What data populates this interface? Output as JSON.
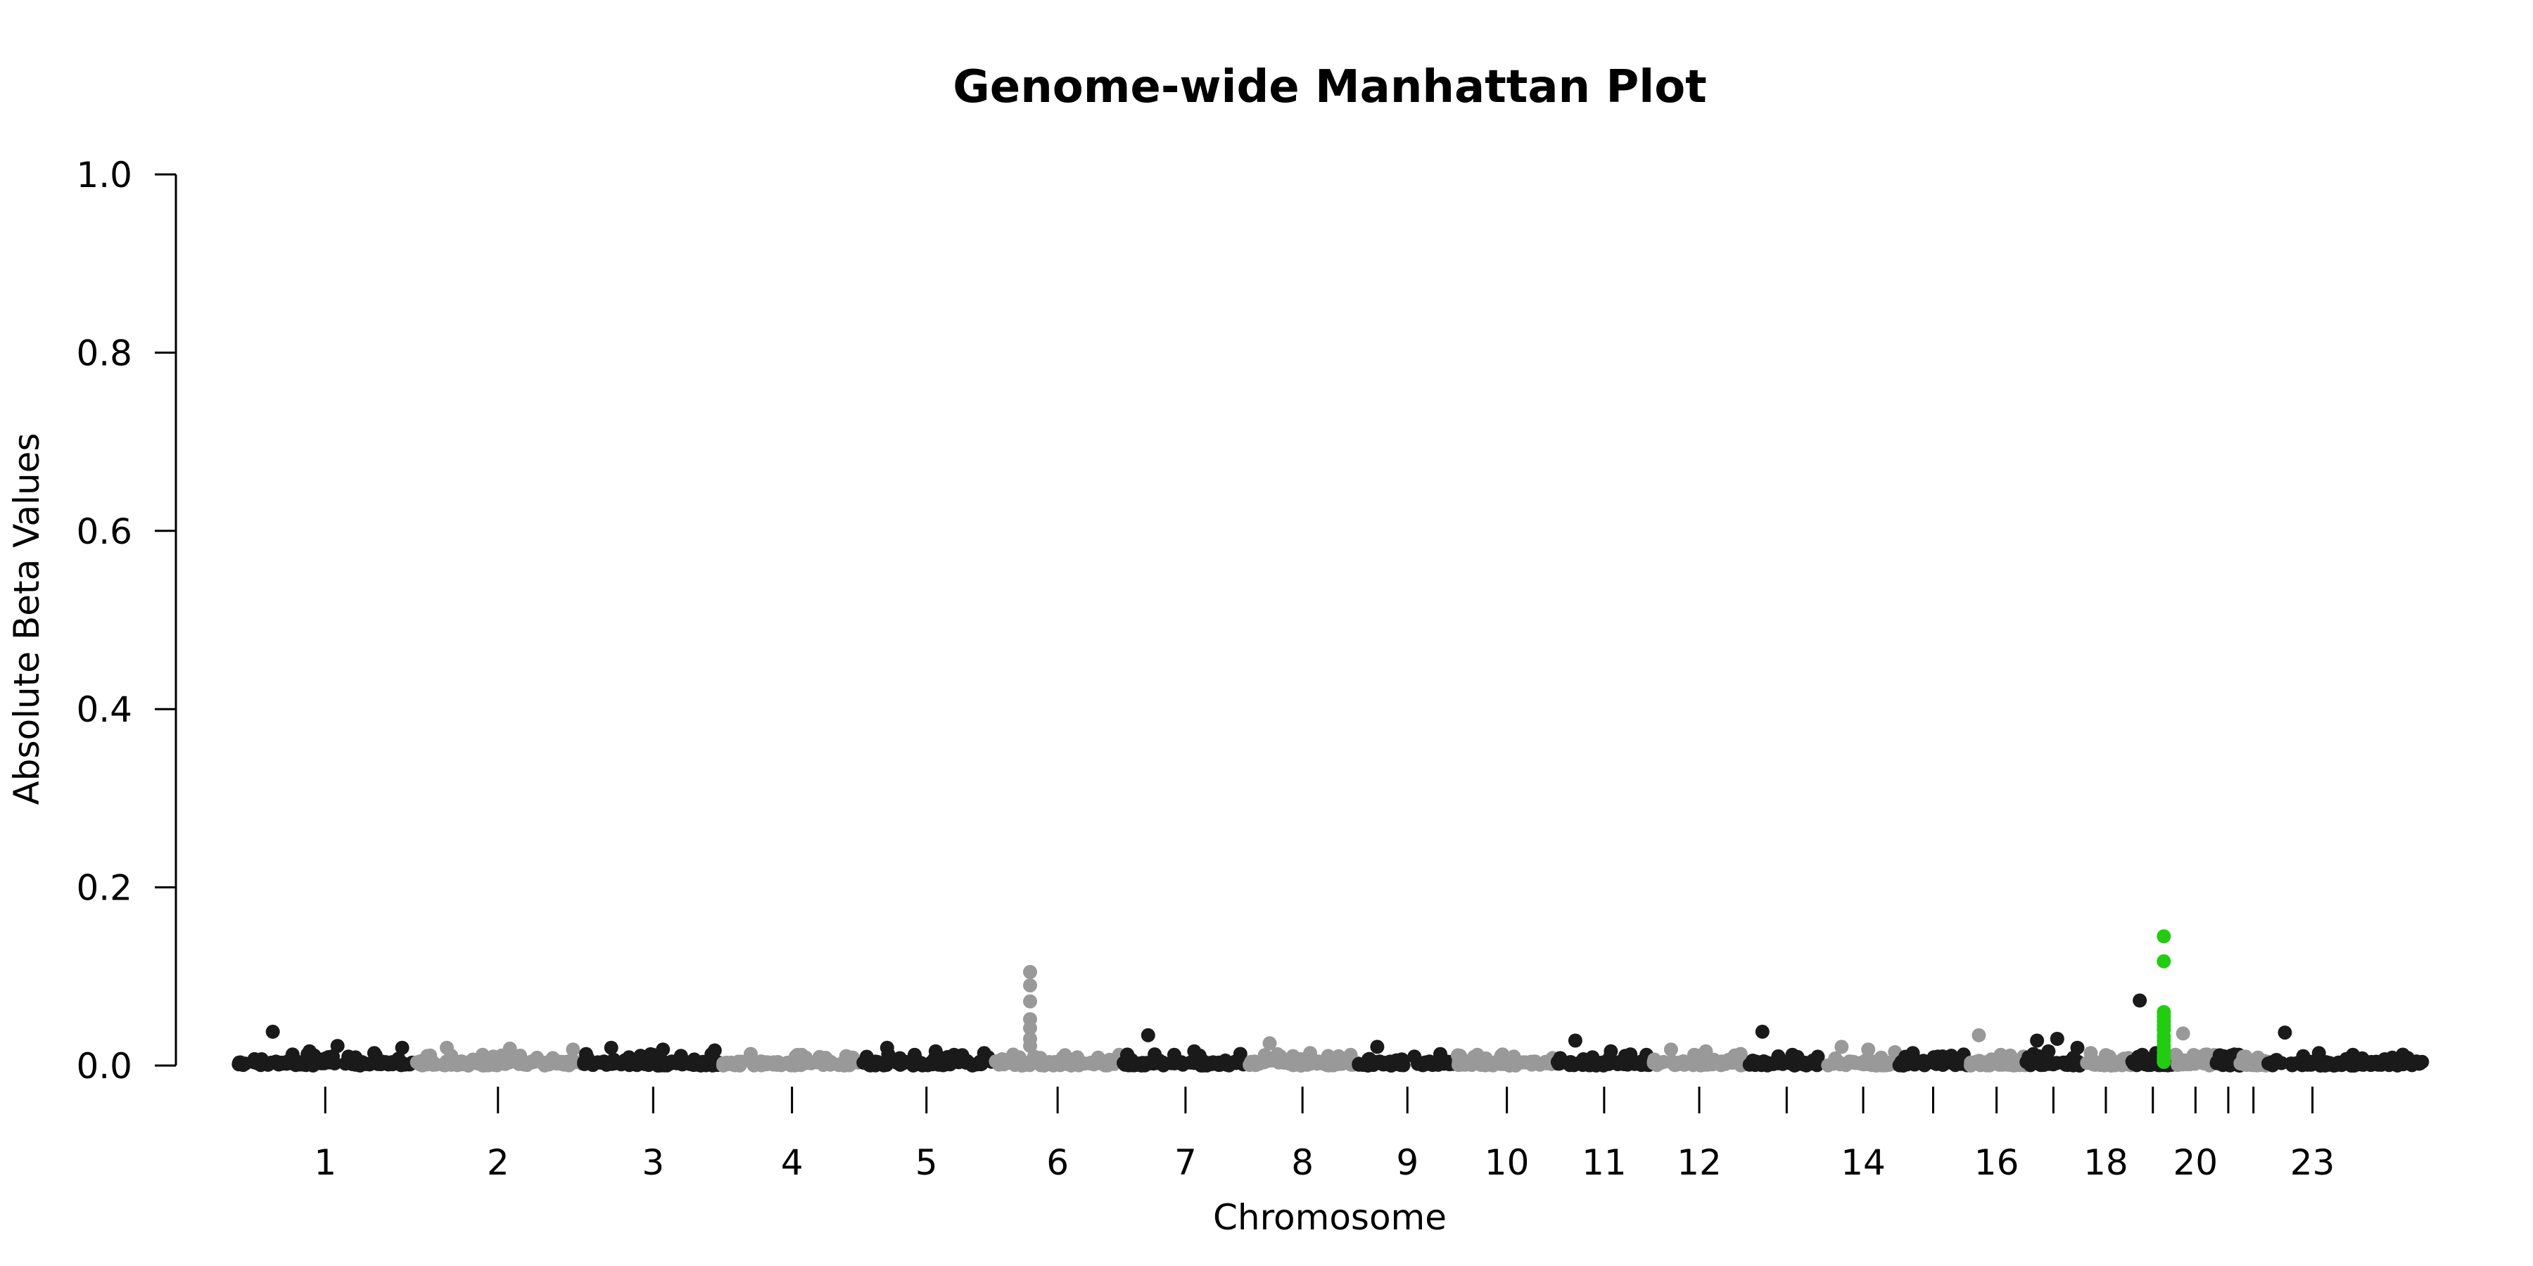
{
  "chart_data": {
    "type": "scatter",
    "subtype": "manhattan",
    "title": "Genome-wide Manhattan Plot",
    "xlabel": "Chromosome",
    "ylabel": "Absolute Beta Values",
    "ylim": [
      0,
      1.0
    ],
    "y_ticks": [
      "0.0",
      "0.2",
      "0.4",
      "0.6",
      "0.8",
      "1.0"
    ],
    "x_tick_labels": [
      "1",
      "2",
      "3",
      "4",
      "5",
      "6",
      "7",
      "8",
      "9",
      "10",
      "11",
      "12",
      "14",
      "16",
      "18",
      "20",
      "23"
    ],
    "grid": false,
    "legend": "none",
    "colors": {
      "odd": "#1a1a1a",
      "even": "#999999",
      "highlight": "#22cc11"
    },
    "chromosomes": [
      {
        "chr": 1,
        "start": 0.0,
        "end": 0.08,
        "color": "odd",
        "label": "1",
        "peaks": [
          0.038,
          0.022,
          0.02,
          0.016,
          0.014
        ]
      },
      {
        "chr": 2,
        "start": 0.08,
        "end": 0.158,
        "color": "even",
        "label": "2",
        "peaks": [
          0.02,
          0.019,
          0.018,
          0.012
        ]
      },
      {
        "chr": 3,
        "start": 0.158,
        "end": 0.222,
        "color": "odd",
        "label": "3",
        "peaks": [
          0.02,
          0.018,
          0.017,
          0.011
        ]
      },
      {
        "chr": 4,
        "start": 0.222,
        "end": 0.285,
        "color": "even",
        "label": "4",
        "peaks": [
          0.013,
          0.012,
          0.009
        ]
      },
      {
        "chr": 5,
        "start": 0.285,
        "end": 0.345,
        "color": "odd",
        "label": "5",
        "peaks": [
          0.02,
          0.016,
          0.014,
          0.012
        ]
      },
      {
        "chr": 6,
        "start": 0.345,
        "end": 0.405,
        "color": "even",
        "label": "6",
        "peaks": [
          0.105,
          0.09,
          0.072,
          0.052,
          0.042,
          0.03,
          0.022
        ]
      },
      {
        "chr": 7,
        "start": 0.405,
        "end": 0.462,
        "color": "odd",
        "label": "7",
        "peaks": [
          0.034,
          0.016,
          0.013,
          0.012
        ]
      },
      {
        "chr": 8,
        "start": 0.462,
        "end": 0.512,
        "color": "even",
        "label": "8",
        "peaks": [
          0.025,
          0.014,
          0.012
        ]
      },
      {
        "chr": 9,
        "start": 0.512,
        "end": 0.558,
        "color": "odd",
        "label": "9",
        "peaks": [
          0.021,
          0.01
        ]
      },
      {
        "chr": 10,
        "start": 0.558,
        "end": 0.603,
        "color": "even",
        "label": "10",
        "peaks": [
          0.012,
          0.01
        ]
      },
      {
        "chr": 11,
        "start": 0.603,
        "end": 0.647,
        "color": "odd",
        "label": "11",
        "peaks": [
          0.028,
          0.016,
          0.012
        ]
      },
      {
        "chr": 12,
        "start": 0.647,
        "end": 0.69,
        "color": "even",
        "label": "12",
        "peaks": [
          0.018,
          0.016,
          0.013
        ]
      },
      {
        "chr": 13,
        "start": 0.69,
        "end": 0.727,
        "color": "odd",
        "label": "",
        "peaks": [
          0.038,
          0.012
        ]
      },
      {
        "chr": 14,
        "start": 0.727,
        "end": 0.76,
        "color": "even",
        "label": "14",
        "peaks": [
          0.021,
          0.018,
          0.015
        ]
      },
      {
        "chr": 15,
        "start": 0.76,
        "end": 0.791,
        "color": "odd",
        "label": "",
        "peaks": [
          0.014,
          0.01
        ]
      },
      {
        "chr": 16,
        "start": 0.791,
        "end": 0.818,
        "color": "even",
        "label": "16",
        "peaks": [
          0.034,
          0.012
        ]
      },
      {
        "chr": 17,
        "start": 0.818,
        "end": 0.843,
        "color": "odd",
        "label": "",
        "peaks": [
          0.028,
          0.03,
          0.02,
          0.016
        ]
      },
      {
        "chr": 18,
        "start": 0.843,
        "end": 0.866,
        "color": "even",
        "label": "18",
        "peaks": [
          0.014,
          0.01
        ]
      },
      {
        "chr": 19,
        "start": 0.866,
        "end": 0.886,
        "color": "odd",
        "label": "",
        "peaks": [
          0.073,
          0.014
        ]
      },
      {
        "chr": 20,
        "start": 0.886,
        "end": 0.905,
        "color": "even",
        "label": "20",
        "peaks": [
          0.036,
          0.01
        ]
      },
      {
        "chr": 21,
        "start": 0.905,
        "end": 0.916,
        "color": "odd",
        "label": "",
        "peaks": [
          0.008
        ]
      },
      {
        "chr": 22,
        "start": 0.916,
        "end": 0.928,
        "color": "even",
        "label": "",
        "peaks": [
          0.01
        ]
      },
      {
        "chr": 23,
        "start": 0.928,
        "end": 0.97,
        "color": "odd",
        "label": "23",
        "peaks": [
          0.037,
          0.014,
          0.012
        ]
      },
      {
        "chr": 24,
        "start": 0.97,
        "end": 1.0,
        "color": "odd",
        "label": "",
        "peaks": [
          0.004
        ]
      }
    ],
    "highlight": {
      "chromosome": 19,
      "position": 0.881,
      "values": [
        0.145,
        0.117,
        0.06,
        0.055,
        0.05,
        0.045,
        0.04,
        0.033,
        0.028,
        0.022,
        0.017,
        0.012,
        0.008,
        0.004
      ]
    }
  }
}
